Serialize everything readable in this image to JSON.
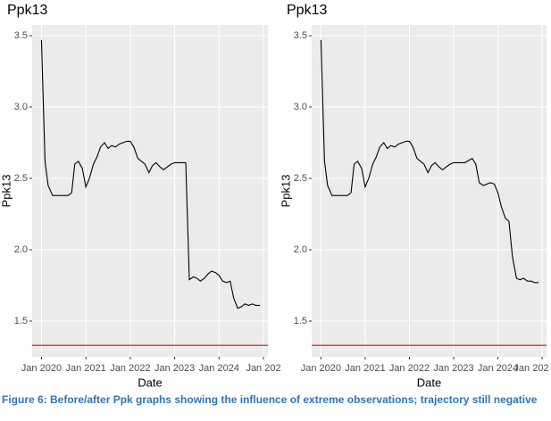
{
  "chart_data": [
    {
      "type": "line",
      "title": "Ppk13",
      "x_label": "Date",
      "y_label": "Ppk13",
      "xlim": [
        2019.79,
        2025.1
      ],
      "ylim": [
        1.25,
        3.575
      ],
      "xticks": [
        {
          "value": 2020,
          "label": "Jan 2020"
        },
        {
          "value": 2021,
          "label": "Jan 2021"
        },
        {
          "value": 2022,
          "label": "Jan 2022"
        },
        {
          "value": 2023,
          "label": "Jan 2023"
        },
        {
          "value": 2024,
          "label": "Jan 2024"
        },
        {
          "value": 2025,
          "label": "Jan 202"
        }
      ],
      "yticks": [
        1.5,
        {
          "value": 2,
          "label": "2.0"
        },
        2.5,
        {
          "value": 3,
          "label": "3.0"
        },
        3.5
      ],
      "hline": {
        "value": 1.33,
        "color": "#ff0000"
      },
      "grid": true,
      "series": [
        {
          "color": "#000000",
          "x": [
            2020.0,
            2020.08,
            2020.15,
            2020.25,
            2020.6,
            2020.68,
            2020.75,
            2020.83,
            2020.92,
            2021.0,
            2021.08,
            2021.17,
            2021.25,
            2021.33,
            2021.42,
            2021.5,
            2021.58,
            2021.67,
            2021.75,
            2021.92,
            2022.0,
            2022.08,
            2022.17,
            2022.25,
            2022.33,
            2022.42,
            2022.5,
            2022.58,
            2022.67,
            2022.75,
            2022.83,
            2022.92,
            2023.0,
            2023.25,
            2023.33,
            2023.42,
            2023.5,
            2023.58,
            2023.67,
            2023.75,
            2023.83,
            2023.92,
            2024.0,
            2024.08,
            2024.17,
            2024.25,
            2024.33,
            2024.42,
            2024.5,
            2024.58,
            2024.67,
            2024.75,
            2024.83,
            2024.92
          ],
          "values": [
            3.47,
            2.62,
            2.45,
            2.38,
            2.38,
            2.4,
            2.6,
            2.62,
            2.57,
            2.44,
            2.5,
            2.6,
            2.65,
            2.72,
            2.75,
            2.71,
            2.73,
            2.72,
            2.74,
            2.76,
            2.76,
            2.72,
            2.64,
            2.62,
            2.6,
            2.54,
            2.59,
            2.61,
            2.58,
            2.56,
            2.58,
            2.6,
            2.61,
            2.61,
            1.79,
            1.81,
            1.8,
            1.78,
            1.8,
            1.83,
            1.85,
            1.84,
            1.82,
            1.78,
            1.77,
            1.78,
            1.66,
            1.59,
            1.6,
            1.62,
            1.61,
            1.62,
            1.61,
            1.61
          ]
        }
      ]
    },
    {
      "type": "line",
      "title": "Ppk13",
      "x_label": "Date",
      "y_label": "Ppk13",
      "xlim": [
        2019.79,
        2025.1
      ],
      "ylim": [
        1.25,
        3.575
      ],
      "xticks": [
        {
          "value": 2020,
          "label": "Jan 2020"
        },
        {
          "value": 2021,
          "label": "Jan 2021"
        },
        {
          "value": 2022,
          "label": "Jan 2022"
        },
        {
          "value": 2023,
          "label": "Jan 2023"
        },
        {
          "value": 2024,
          "label": "Jan 2024"
        },
        {
          "value": 2025,
          "label": "Jan 202"
        }
      ],
      "yticks": [
        1.5,
        {
          "value": 2,
          "label": "2.0"
        },
        2.5,
        {
          "value": 3,
          "label": "3.0"
        },
        3.5
      ],
      "hline": {
        "value": 1.33,
        "color": "#ff0000"
      },
      "grid": true,
      "series": [
        {
          "color": "#000000",
          "x": [
            2020.0,
            2020.08,
            2020.15,
            2020.25,
            2020.6,
            2020.68,
            2020.75,
            2020.83,
            2020.92,
            2021.0,
            2021.08,
            2021.17,
            2021.25,
            2021.33,
            2021.42,
            2021.5,
            2021.58,
            2021.67,
            2021.75,
            2021.92,
            2022.0,
            2022.08,
            2022.17,
            2022.25,
            2022.33,
            2022.42,
            2022.5,
            2022.58,
            2022.67,
            2022.75,
            2022.83,
            2022.92,
            2023.0,
            2023.25,
            2023.42,
            2023.5,
            2023.58,
            2023.67,
            2023.75,
            2023.83,
            2023.92,
            2024.0,
            2024.08,
            2024.17,
            2024.25,
            2024.33,
            2024.42,
            2024.5,
            2024.58,
            2024.67,
            2024.75,
            2024.83,
            2024.92
          ],
          "values": [
            3.47,
            2.62,
            2.45,
            2.38,
            2.38,
            2.4,
            2.6,
            2.62,
            2.57,
            2.44,
            2.5,
            2.6,
            2.65,
            2.72,
            2.75,
            2.71,
            2.73,
            2.72,
            2.74,
            2.76,
            2.76,
            2.72,
            2.64,
            2.62,
            2.6,
            2.54,
            2.59,
            2.61,
            2.58,
            2.56,
            2.58,
            2.6,
            2.61,
            2.61,
            2.64,
            2.6,
            2.47,
            2.45,
            2.46,
            2.47,
            2.46,
            2.4,
            2.3,
            2.22,
            2.2,
            1.95,
            1.8,
            1.79,
            1.8,
            1.78,
            1.78,
            1.77,
            1.77
          ]
        }
      ]
    }
  ],
  "caption": "Figure 6: Before/after Ppk graphs showing the influence of extreme observations; trajectory still negative"
}
